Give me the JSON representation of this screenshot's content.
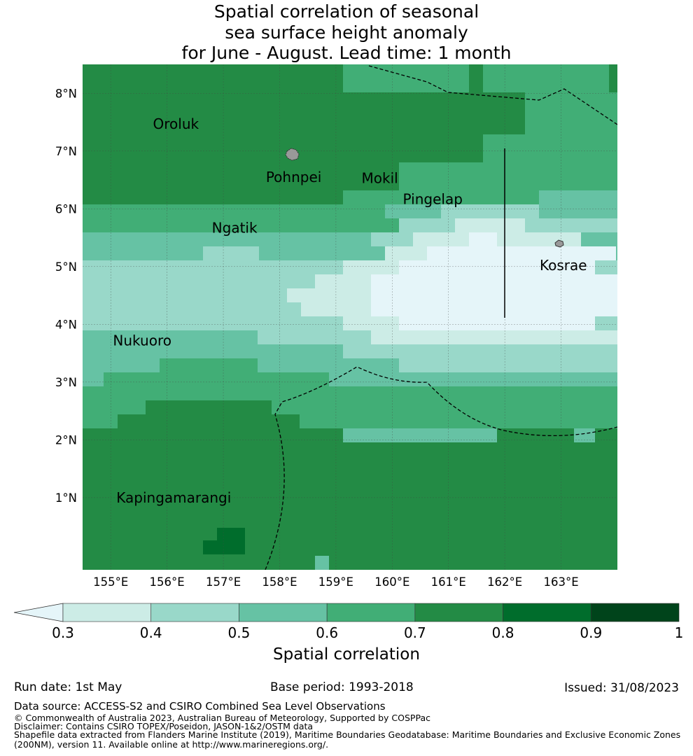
{
  "title_lines": [
    "Spatial correlation of seasonal",
    "sea surface height anomaly",
    "for June - August. Lead time: 1 month"
  ],
  "map": {
    "lon_ticks": [
      "155°E",
      "156°E",
      "157°E",
      "158°E",
      "159°E",
      "160°E",
      "161°E",
      "162°E",
      "163°E"
    ],
    "lat_ticks": [
      "8°N",
      "7°N",
      "6°N",
      "5°N",
      "4°N",
      "3°N",
      "2°N",
      "1°N"
    ],
    "extent": {
      "lon_min": 154.5,
      "lon_max": 164.0,
      "lat_min": -0.25,
      "lat_max": 8.5
    },
    "islands": [
      {
        "name": "Oroluk",
        "lon": 155.85,
        "lat": 7.55
      },
      {
        "name": "Pohnpei",
        "lon": 158.2,
        "lat": 6.87
      },
      {
        "name": "Mokil",
        "lon": 159.78,
        "lat": 6.65
      },
      {
        "name": "Pingelap",
        "lon": 160.72,
        "lat": 6.22
      },
      {
        "name": "Ngatik",
        "lon": 157.2,
        "lat": 5.77
      },
      {
        "name": "Kosrae",
        "lon": 162.98,
        "lat": 5.32
      },
      {
        "name": "Nukuoro",
        "lon": 154.95,
        "lat": 3.87
      },
      {
        "name": "Kapingamarangi",
        "lon": 154.95,
        "lat": 1.1
      }
    ]
  },
  "colorbar": {
    "title": "Spatial correlation",
    "tick_labels": [
      "0.3",
      "0.4",
      "0.5",
      "0.6",
      "0.7",
      "0.8",
      "0.9",
      "1"
    ],
    "colors": [
      "#e5f5f9",
      "#ccece6",
      "#99d8c9",
      "#66c2a4",
      "#41ae76",
      "#238b45",
      "#006d2c",
      "#00441b"
    ]
  },
  "footer": {
    "run_date": "Run date: 1st May",
    "base_period": "Base period: 1993-2018",
    "issued": "Issued: 31/08/2023",
    "data_source": "Data source: ACCESS-S2 and CSIRO Combined Sea Level Observations",
    "copyright": "© Commonwealth of Australia 2023, Australian Bureau of Meteorology, Supported by COSPPac",
    "disclaimer": "Disclaimer: Contains CSIRO TOPEX/Poseidon, JASON-1&2/OSTM data",
    "shapefile_1": "Shapefile data extracted from Flanders Marine Institute (2019), Maritime Boundaries Geodatabase: Maritime Boundaries and Exclusive Economic Zones",
    "shapefile_2": "(200NM), version 11. Available online at http://www.marineregions.org/."
  }
}
